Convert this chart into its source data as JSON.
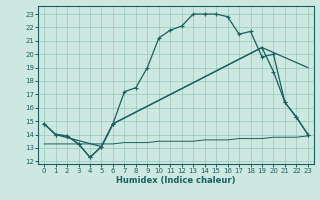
{
  "title": "",
  "xlabel": "Humidex (Indice chaleur)",
  "bg_color": "#cce8e0",
  "grid_color": "#99c8bc",
  "line_color": "#1a6060",
  "xlim": [
    -0.5,
    23.5
  ],
  "ylim": [
    11.8,
    23.6
  ],
  "xticks": [
    0,
    1,
    2,
    3,
    4,
    5,
    6,
    7,
    8,
    9,
    10,
    11,
    12,
    13,
    14,
    15,
    16,
    17,
    18,
    19,
    20,
    21,
    22,
    23
  ],
  "yticks": [
    12,
    13,
    14,
    15,
    16,
    17,
    18,
    19,
    20,
    21,
    22,
    23
  ],
  "line1_x": [
    0,
    1,
    2,
    3,
    4,
    5,
    6,
    7,
    8,
    9,
    10,
    11,
    12,
    13,
    14,
    15,
    16,
    17,
    18,
    19,
    20,
    21,
    22,
    23
  ],
  "line1_y": [
    14.8,
    14.0,
    13.9,
    13.3,
    12.3,
    13.1,
    14.8,
    17.2,
    17.5,
    19.0,
    21.2,
    21.8,
    22.1,
    23.0,
    23.0,
    23.0,
    22.8,
    21.5,
    21.7,
    19.8,
    20.0,
    16.4,
    15.3,
    14.0
  ],
  "line2_x": [
    0,
    1,
    2,
    3,
    4,
    5,
    6,
    19,
    20,
    21,
    22,
    23
  ],
  "line2_y": [
    14.8,
    14.0,
    13.9,
    13.3,
    12.3,
    13.1,
    14.8,
    20.5,
    18.7,
    16.4,
    15.3,
    14.0
  ],
  "line3_x": [
    0,
    1,
    5,
    6,
    19,
    23
  ],
  "line3_y": [
    14.8,
    14.0,
    13.1,
    14.8,
    20.5,
    19.0
  ],
  "line4_x": [
    0,
    1,
    2,
    3,
    4,
    5,
    6,
    7,
    8,
    9,
    10,
    11,
    12,
    13,
    14,
    15,
    16,
    17,
    18,
    19,
    20,
    21,
    22,
    23
  ],
  "line4_y": [
    13.3,
    13.3,
    13.3,
    13.3,
    13.3,
    13.3,
    13.3,
    13.4,
    13.4,
    13.4,
    13.5,
    13.5,
    13.5,
    13.5,
    13.6,
    13.6,
    13.6,
    13.7,
    13.7,
    13.7,
    13.8,
    13.8,
    13.8,
    13.9
  ]
}
